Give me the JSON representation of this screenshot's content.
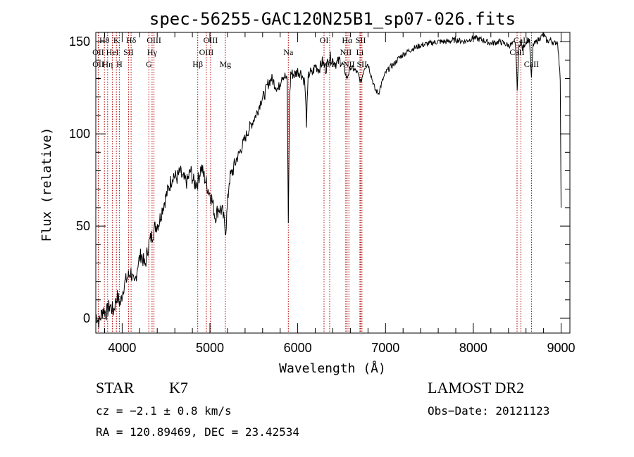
{
  "chart_data": {
    "type": "line",
    "title": "spec-56255-GAC120N25B1_sp07-026.fits",
    "xlabel": "Wavelength (Å)",
    "ylabel": "Flux (relative)",
    "xlim": [
      3700,
      9100
    ],
    "ylim": [
      -8,
      155
    ],
    "xticks": [
      4000,
      5000,
      6000,
      7000,
      8000,
      9000
    ],
    "xtick_labels": [
      "4000",
      "5000",
      "6000",
      "7000",
      "8000",
      "9000"
    ],
    "yticks": [
      0,
      50,
      100,
      150
    ],
    "ytick_labels": [
      "0",
      "50",
      "100",
      "150"
    ],
    "grid": false,
    "series": [
      {
        "x": [
          3700,
          3740,
          3780,
          3820,
          3860,
          3900,
          3940,
          3980,
          4020,
          4060,
          4100,
          4140,
          4180,
          4220,
          4260,
          4300,
          4340,
          4380,
          4420,
          4460,
          4500,
          4540,
          4580,
          4620,
          4660,
          4700,
          4740,
          4780,
          4820,
          4860,
          4900,
          4940,
          4980,
          5020,
          5060,
          5100,
          5140,
          5180,
          5220,
          5260,
          5300,
          5340,
          5380,
          5420,
          5460,
          5500,
          5540,
          5580,
          5620,
          5660,
          5700,
          5740,
          5780,
          5820,
          5860,
          5880,
          5893,
          5905,
          5920,
          5960,
          6000,
          6040,
          6080,
          6100,
          6120,
          6140,
          6160,
          6200,
          6240,
          6280,
          6320,
          6360,
          6400,
          6440,
          6480,
          6520,
          6560,
          6600,
          6640,
          6680,
          6720,
          6760,
          6800,
          6840,
          6880,
          6920,
          6960,
          7000,
          7050,
          7100,
          7150,
          7200,
          7300,
          7400,
          7500,
          7600,
          7700,
          7800,
          7900,
          8000,
          8100,
          8200,
          8300,
          8400,
          8480,
          8500,
          8520,
          8540,
          8560,
          8600,
          8640,
          8662,
          8680,
          8720,
          8760,
          8800,
          8840,
          8880,
          8920,
          8960,
          8990,
          9000
        ],
        "y": [
          2,
          -2,
          5,
          3,
          7,
          4,
          12,
          8,
          18,
          22,
          25,
          17,
          30,
          35,
          28,
          40,
          45,
          50,
          52,
          60,
          66,
          72,
          78,
          76,
          79,
          75,
          74,
          80,
          73,
          74,
          82,
          76,
          70,
          65,
          55,
          60,
          58,
          48,
          75,
          80,
          86,
          90,
          95,
          100,
          104,
          108,
          112,
          118,
          121,
          127,
          130,
          127,
          124,
          132,
          131,
          128,
          50,
          115,
          133,
          132,
          134,
          133,
          128,
          106,
          131,
          134,
          132,
          137,
          135,
          139,
          135,
          142,
          140,
          138,
          140,
          137,
          130,
          136,
          135,
          133,
          128,
          136,
          138,
          131,
          124,
          122,
          128,
          133,
          136,
          138,
          141,
          143,
          146,
          148,
          149,
          150,
          150,
          151,
          150,
          152,
          151,
          149,
          150,
          148,
          149,
          125,
          148,
          150,
          146,
          150,
          151,
          130,
          148,
          150,
          152,
          154,
          150,
          151,
          149,
          150,
          130,
          60
        ]
      }
    ],
    "lines": [
      {
        "label": "Hθ",
        "x": 3798,
        "row": 0
      },
      {
        "label": "K",
        "x": 3934,
        "row": 0
      },
      {
        "label": "Hδ",
        "x": 4102,
        "row": 0
      },
      {
        "label": "OIII",
        "x": 4363,
        "row": 0
      },
      {
        "label": "OIII",
        "x": 5007,
        "row": 0
      },
      {
        "label": "OI",
        "x": 6300,
        "row": 0
      },
      {
        "label": "Hα",
        "x": 6563,
        "row": 0
      },
      {
        "label": "SII",
        "x": 6717,
        "row": 0
      },
      {
        "label": "CaII",
        "x": 8542,
        "row": 0
      },
      {
        "label": "OII",
        "x": 3727,
        "row": 1
      },
      {
        "label": "HeI",
        "x": 3889,
        "row": 1
      },
      {
        "label": "SII",
        "x": 4072,
        "row": 1
      },
      {
        "label": "Hγ",
        "x": 4341,
        "row": 1
      },
      {
        "label": "OIII",
        "x": 4959,
        "row": 1
      },
      {
        "label": "Na",
        "x": 5893,
        "row": 1
      },
      {
        "label": "NII",
        "x": 6548,
        "row": 1
      },
      {
        "label": "Li",
        "x": 6708,
        "row": 1
      },
      {
        "label": "CaII",
        "x": 8498,
        "row": 1
      },
      {
        "label": "OII",
        "x": 3729,
        "row": 2
      },
      {
        "label": "Hη",
        "x": 3835,
        "row": 2
      },
      {
        "label": "H",
        "x": 3968,
        "row": 2
      },
      {
        "label": "G",
        "x": 4304,
        "row": 2
      },
      {
        "label": "Hβ",
        "x": 4861,
        "row": 2
      },
      {
        "label": "Mg",
        "x": 5175,
        "row": 2
      },
      {
        "label": "OI",
        "x": 6364,
        "row": 2
      },
      {
        "label": "NII",
        "x": 6583,
        "row": 2
      },
      {
        "label": "SII",
        "x": 6731,
        "row": 2
      },
      {
        "label": "CaII",
        "x": 8662,
        "row": 2
      }
    ]
  },
  "info": {
    "class": "STAR",
    "subclass": "K7",
    "cz": "cz = −2.1 ± 0.8 km/s",
    "radec": "RA = 120.89469, DEC =  23.42534",
    "survey": "LAMOST DR2",
    "obsdate": "Obs−Date: 20121123"
  },
  "colors": {
    "spectrum": "#000000",
    "line_markers": "#b00000"
  }
}
